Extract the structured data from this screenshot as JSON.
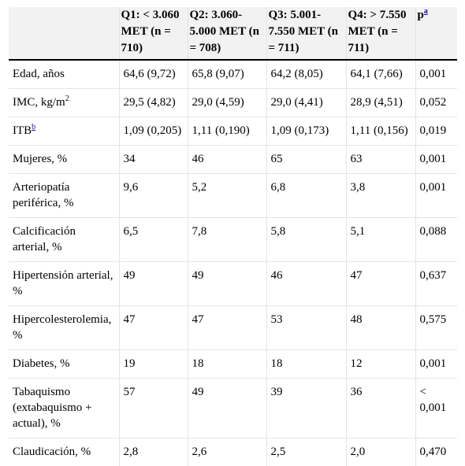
{
  "headers": {
    "q1": "Q1: < 3.060 MET (n = 710)",
    "q2": "Q2: 3.060-5.000 MET (n = 708)",
    "q3": "Q3: 5.001-7.550 MET (n = 711)",
    "q4": "Q4: > 7.550 MET (n = 711)",
    "p": "p",
    "p_note": "a"
  },
  "rows": [
    {
      "label": "Edad, años",
      "q1": "64,6 (9,72)",
      "q2": "65,8 (9,07)",
      "q3": "64,2 (8,05)",
      "q4": "64,1 (7,66)",
      "p": "0,001"
    },
    {
      "label": "IMC, kg/m",
      "label_sup": "2",
      "q1": "29,5 (4,82)",
      "q2": "29,0 (4,59)",
      "q3": "29,0 (4,41)",
      "q4": "28,9 (4,51)",
      "p": "0,052"
    },
    {
      "label": "ITB",
      "label_note": "b",
      "q1": "1,09 (0,205)",
      "q2": "1,11 (0,190)",
      "q3": "1,09 (0,173)",
      "q4": "1,11 (0,156)",
      "p": "0,019"
    },
    {
      "label": "Mujeres, %",
      "q1": "34",
      "q2": "46",
      "q3": "65",
      "q4": "63",
      "p": "0,001"
    },
    {
      "label": "Arteriopatía periférica, %",
      "q1": "9,6",
      "q2": "5,2",
      "q3": "6,8",
      "q4": "3,8",
      "p": "0,001"
    },
    {
      "label": "Calcificación arterial, %",
      "q1": "6,5",
      "q2": "7,8",
      "q3": "5,8",
      "q4": "5,1",
      "p": "0,088"
    },
    {
      "label": "Hipertensión arterial, %",
      "q1": "49",
      "q2": "49",
      "q3": "46",
      "q4": "47",
      "p": "0,637"
    },
    {
      "label": "Hipercolesterolemia, %",
      "q1": "47",
      "q2": "47",
      "q3": "53",
      "q4": "48",
      "p": "0,575"
    },
    {
      "label": "Diabetes, %",
      "q1": "19",
      "q2": "18",
      "q3": "18",
      "q4": "12",
      "p": "0,001"
    },
    {
      "label": "Tabaquismo (extabaquismo + actual), %",
      "q1": "57",
      "q2": "49",
      "q3": "39",
      "q4": "36",
      "p": "< 0,001"
    },
    {
      "label": "Claudicación, %",
      "q1": "2,8",
      "q2": "2,6",
      "q3": "2,5",
      "q4": "2,0",
      "p": "0,470"
    }
  ]
}
